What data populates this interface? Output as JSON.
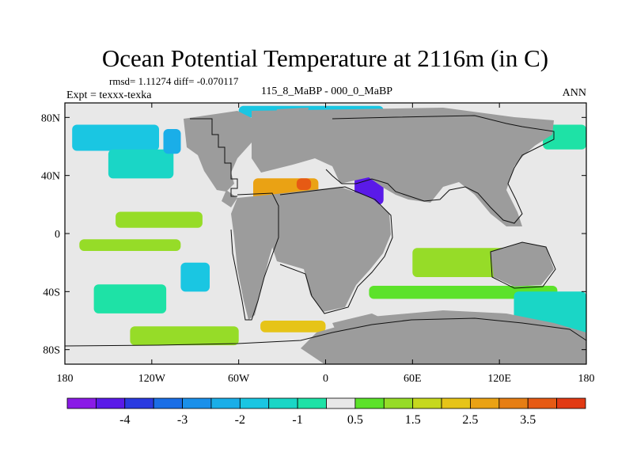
{
  "chart_data": {
    "type": "heatmap",
    "title": "Ocean Potential Temperature at 2116m (in C)",
    "stats": "rmsd= 1.11274 diff= -0.070117",
    "experiment": "Expt = texxx-texka",
    "subtitle": "115_8_MaBP - 000_0_MaBP",
    "season": "ANN",
    "xlim": [
      -180,
      180
    ],
    "ylim": [
      -90,
      90
    ],
    "x_ticks": [
      {
        "value": -180,
        "label": "180"
      },
      {
        "value": -120,
        "label": "120W"
      },
      {
        "value": -60,
        "label": "60W"
      },
      {
        "value": 0,
        "label": "0"
      },
      {
        "value": 60,
        "label": "60E"
      },
      {
        "value": 120,
        "label": "120E"
      },
      {
        "value": 180,
        "label": "180"
      }
    ],
    "y_ticks": [
      {
        "value": 80,
        "label": "80N"
      },
      {
        "value": 40,
        "label": "40N"
      },
      {
        "value": 0,
        "label": "0"
      },
      {
        "value": -40,
        "label": "40S"
      },
      {
        "value": -80,
        "label": "80S"
      }
    ],
    "colorbar": {
      "levels": [
        -4.5,
        -4,
        -3.5,
        -3,
        -2.5,
        -2,
        -1.5,
        -1,
        -0.5,
        0.5,
        1,
        1.5,
        2,
        2.5,
        3,
        3.5,
        4
      ],
      "colors": [
        "#8a1ae6",
        "#5a1ae8",
        "#2a3ae0",
        "#1a6ee6",
        "#1a90ea",
        "#1aaee8",
        "#1ac6e2",
        "#1ad6c6",
        "#1ee2a6",
        "#e8e8e8",
        "#5ce22a",
        "#96dc28",
        "#c6d81e",
        "#e6c418",
        "#eaa214",
        "#e67e14",
        "#e65a14",
        "#e23a14"
      ],
      "labels": [
        {
          "value": -4,
          "label": "-4"
        },
        {
          "value": -3,
          "label": "-3"
        },
        {
          "value": -2,
          "label": "-2"
        },
        {
          "value": -1,
          "label": "-1"
        },
        {
          "value": 0.5,
          "label": "0.5"
        },
        {
          "value": 1.5,
          "label": "1.5"
        },
        {
          "value": 2.5,
          "label": "2.5"
        },
        {
          "value": 3.5,
          "label": "3.5"
        }
      ]
    },
    "regions": [
      {
        "name": "North Pacific cool band",
        "lon": [
          -175,
          -115
        ],
        "lat": [
          57,
          75
        ],
        "value": -1.8
      },
      {
        "name": "North Pacific cool tongue",
        "lon": [
          -150,
          -105
        ],
        "lat": [
          38,
          58
        ],
        "value": -1.2
      },
      {
        "name": "NE Pacific anomaly",
        "lon": [
          -112,
          -100
        ],
        "lat": [
          55,
          72
        ],
        "value": -2.2
      },
      {
        "name": "Equatorial Pacific band north",
        "lon": [
          -145,
          -85
        ],
        "lat": [
          4,
          15
        ],
        "value": 1.2
      },
      {
        "name": "Equatorial Pacific band south",
        "lon": [
          -170,
          -100
        ],
        "lat": [
          -12,
          -4
        ],
        "value": 1.0
      },
      {
        "name": "SE Pacific cool patch",
        "lon": [
          -160,
          -110
        ],
        "lat": [
          -55,
          -35
        ],
        "value": -1.0
      },
      {
        "name": "Chile margin cool patch",
        "lon": [
          -100,
          -80
        ],
        "lat": [
          -40,
          -20
        ],
        "value": -2.0
      },
      {
        "name": "South Pacific warm strip",
        "lon": [
          -135,
          -60
        ],
        "lat": [
          -77,
          -64
        ],
        "value": 1.3
      },
      {
        "name": "South Atlantic warm strip",
        "lon": [
          -45,
          0
        ],
        "lat": [
          -68,
          -60
        ],
        "value": 2.1
      },
      {
        "name": "Tethys warm anomaly",
        "lon": [
          -50,
          -5
        ],
        "lat": [
          22,
          38
        ],
        "value": 2.8
      },
      {
        "name": "Tethys hot core",
        "lon": [
          -20,
          -10
        ],
        "lat": [
          30,
          38
        ],
        "value": 3.7
      },
      {
        "name": "Eastern Tethys cold anomaly",
        "lon": [
          20,
          40
        ],
        "lat": [
          20,
          40
        ],
        "value": -4.2
      },
      {
        "name": "Arctic cool cap",
        "lon": [
          -60,
          40
        ],
        "lat": [
          80,
          88
        ],
        "value": -1.6
      },
      {
        "name": "Indian Ocean warm patch",
        "lon": [
          60,
          145
        ],
        "lat": [
          -30,
          -10
        ],
        "value": 1.1
      },
      {
        "name": "Southern Ocean warm band",
        "lon": [
          30,
          160
        ],
        "lat": [
          -45,
          -36
        ],
        "value": 0.9
      },
      {
        "name": "SW Pacific cool gyre",
        "lon": [
          130,
          180
        ],
        "lat": [
          -70,
          -40
        ],
        "value": -1.5
      },
      {
        "name": "NW Pacific cool band",
        "lon": [
          150,
          180
        ],
        "lat": [
          58,
          75
        ],
        "value": -1.0
      }
    ]
  }
}
